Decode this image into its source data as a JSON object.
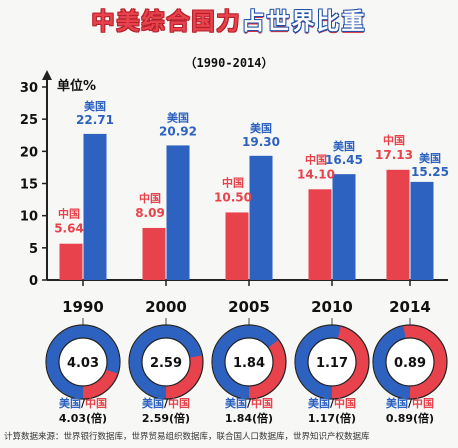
{
  "page": {
    "title_red": "中美综合国力",
    "title_blue": "占世界比重",
    "subtitle": "（1990-2014）",
    "source": "计算数据来源：世界银行数据库，世界贸易组织数据库，联合国人口数据库，世界知识产权数据库"
  },
  "colors": {
    "china": "#e8424c",
    "usa": "#2e62c0",
    "axis": "#222222"
  },
  "chart_data": {
    "type": "bar",
    "title": "中美综合国力占世界比重",
    "ylabel": "单位%",
    "ylim": [
      0,
      30
    ],
    "yticks": [
      0,
      5,
      10,
      15,
      20,
      25,
      30
    ],
    "categories": [
      "1990",
      "2000",
      "2005",
      "2010",
      "2014"
    ],
    "series": [
      {
        "name": "中国",
        "values": [
          5.64,
          8.09,
          10.5,
          14.1,
          17.13
        ],
        "labels": [
          "5.64",
          "8.09",
          "10.50",
          "14.10",
          "17.13"
        ]
      },
      {
        "name": "美国",
        "values": [
          22.71,
          20.92,
          19.3,
          16.45,
          15.25
        ],
        "labels": [
          "22.71",
          "20.92",
          "19.30",
          "16.45",
          "15.25"
        ]
      }
    ],
    "ratios": {
      "label": "美国/中国",
      "values": [
        4.03,
        2.59,
        1.84,
        1.17,
        0.89
      ],
      "center_labels": [
        "4.03",
        "2.59",
        "1.84",
        "1.17",
        "0.89"
      ],
      "ratio_labels": [
        "4.03(倍)",
        "2.59(倍)",
        "1.84(倍)",
        "1.17(倍)",
        "0.89(倍)"
      ]
    }
  }
}
